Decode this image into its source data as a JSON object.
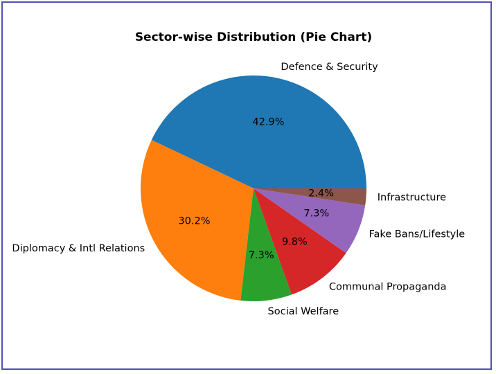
{
  "chart_data": {
    "type": "pie",
    "title": "Sector-wise Distribution (Pie Chart)",
    "labels": [
      "Defence & Security",
      "Diplomacy & Intl Relations",
      "Social Welfare",
      "Communal Propaganda",
      "Fake Bans/Lifestyle",
      "Infrastructure"
    ],
    "values": [
      42.9,
      30.2,
      7.3,
      9.8,
      7.3,
      2.4
    ],
    "pct_labels": [
      "42.9%",
      "30.2%",
      "7.3%",
      "9.8%",
      "7.3%",
      "2.4%"
    ],
    "colors": [
      "#1f77b4",
      "#ff7f0e",
      "#2ca02c",
      "#d62728",
      "#9467bd",
      "#8c564b"
    ],
    "start_angle": 0,
    "direction": "counterclockwise"
  }
}
